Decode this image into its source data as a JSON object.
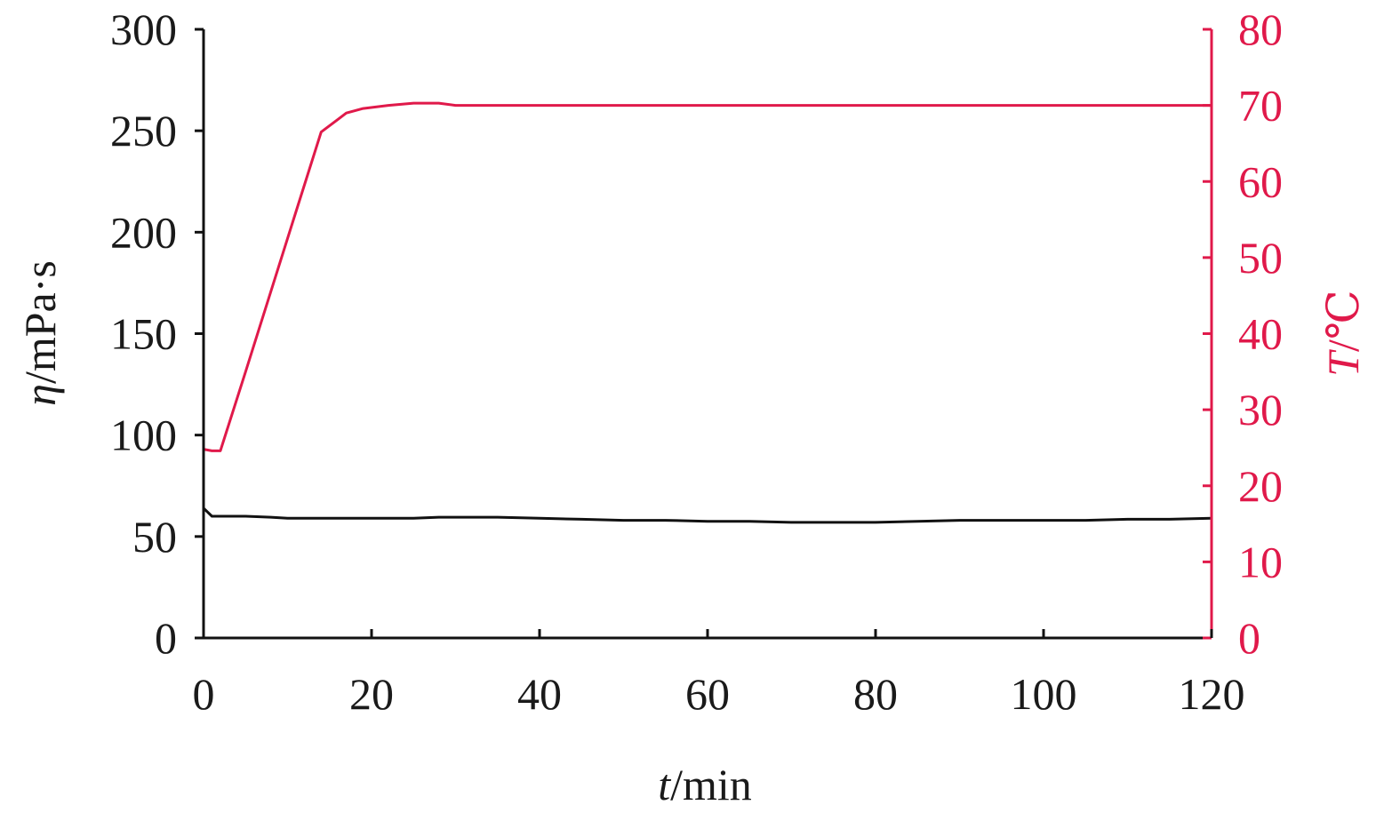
{
  "chart_data": {
    "type": "line",
    "title": "",
    "x": [
      0,
      1,
      2,
      3,
      5,
      8,
      10,
      12,
      14,
      16,
      17,
      18,
      20,
      22,
      25,
      28,
      30,
      35,
      40,
      45,
      50,
      55,
      60,
      65,
      70,
      75,
      80,
      85,
      90,
      95,
      100,
      105,
      110,
      115,
      120
    ],
    "series": [
      {
        "name": "η",
        "axis": "left",
        "color": "#111111",
        "x": [
          0,
          1,
          2,
          3,
          5,
          8,
          10,
          12,
          14,
          16,
          17,
          18,
          20,
          22,
          25,
          28,
          30,
          35,
          40,
          45,
          50,
          55,
          60,
          65,
          70,
          75,
          80,
          85,
          90,
          95,
          100,
          105,
          110,
          115,
          120
        ],
        "values": [
          64,
          60,
          60,
          60,
          60,
          59.5,
          59,
          59,
          59,
          59,
          59,
          59,
          59,
          59,
          59,
          59.5,
          59.5,
          59.5,
          59,
          58.5,
          58,
          58,
          57.5,
          57.5,
          57,
          57,
          57,
          57.5,
          58,
          58,
          58,
          58,
          58.5,
          58.5,
          59
        ]
      },
      {
        "name": "T",
        "axis": "right",
        "color": "#e0194a",
        "x": [
          0,
          1,
          2,
          5,
          8,
          11,
          14,
          17,
          19,
          22,
          25,
          28,
          30,
          40,
          60,
          80,
          100,
          120
        ],
        "values": [
          24.8,
          24.6,
          24.6,
          35,
          45.5,
          56,
          66.5,
          69,
          69.6,
          70,
          70.3,
          70.3,
          70,
          70,
          70,
          70,
          70,
          70
        ]
      }
    ],
    "xlabel_italic": "t",
    "xlabel_rest": "/min",
    "ylabel_left_italic": "η",
    "ylabel_left_rest": "/mPa·s",
    "ylabel_right_italic": "T",
    "ylabel_right_rest": "/℃",
    "xlim": [
      0,
      120
    ],
    "ylim_left": [
      0,
      300
    ],
    "ylim_right": [
      0,
      80
    ],
    "xticks": [
      "0",
      "20",
      "40",
      "60",
      "80",
      "100",
      "120"
    ],
    "yticks_left": [
      "0",
      "50",
      "100",
      "150",
      "200",
      "250",
      "300"
    ],
    "yticks_right": [
      "0",
      "10",
      "20",
      "30",
      "40",
      "50",
      "60",
      "70",
      "80"
    ],
    "grid": false,
    "legend": "none",
    "colors": {
      "left_axis": "#111111",
      "right_axis": "#e0194a"
    }
  }
}
